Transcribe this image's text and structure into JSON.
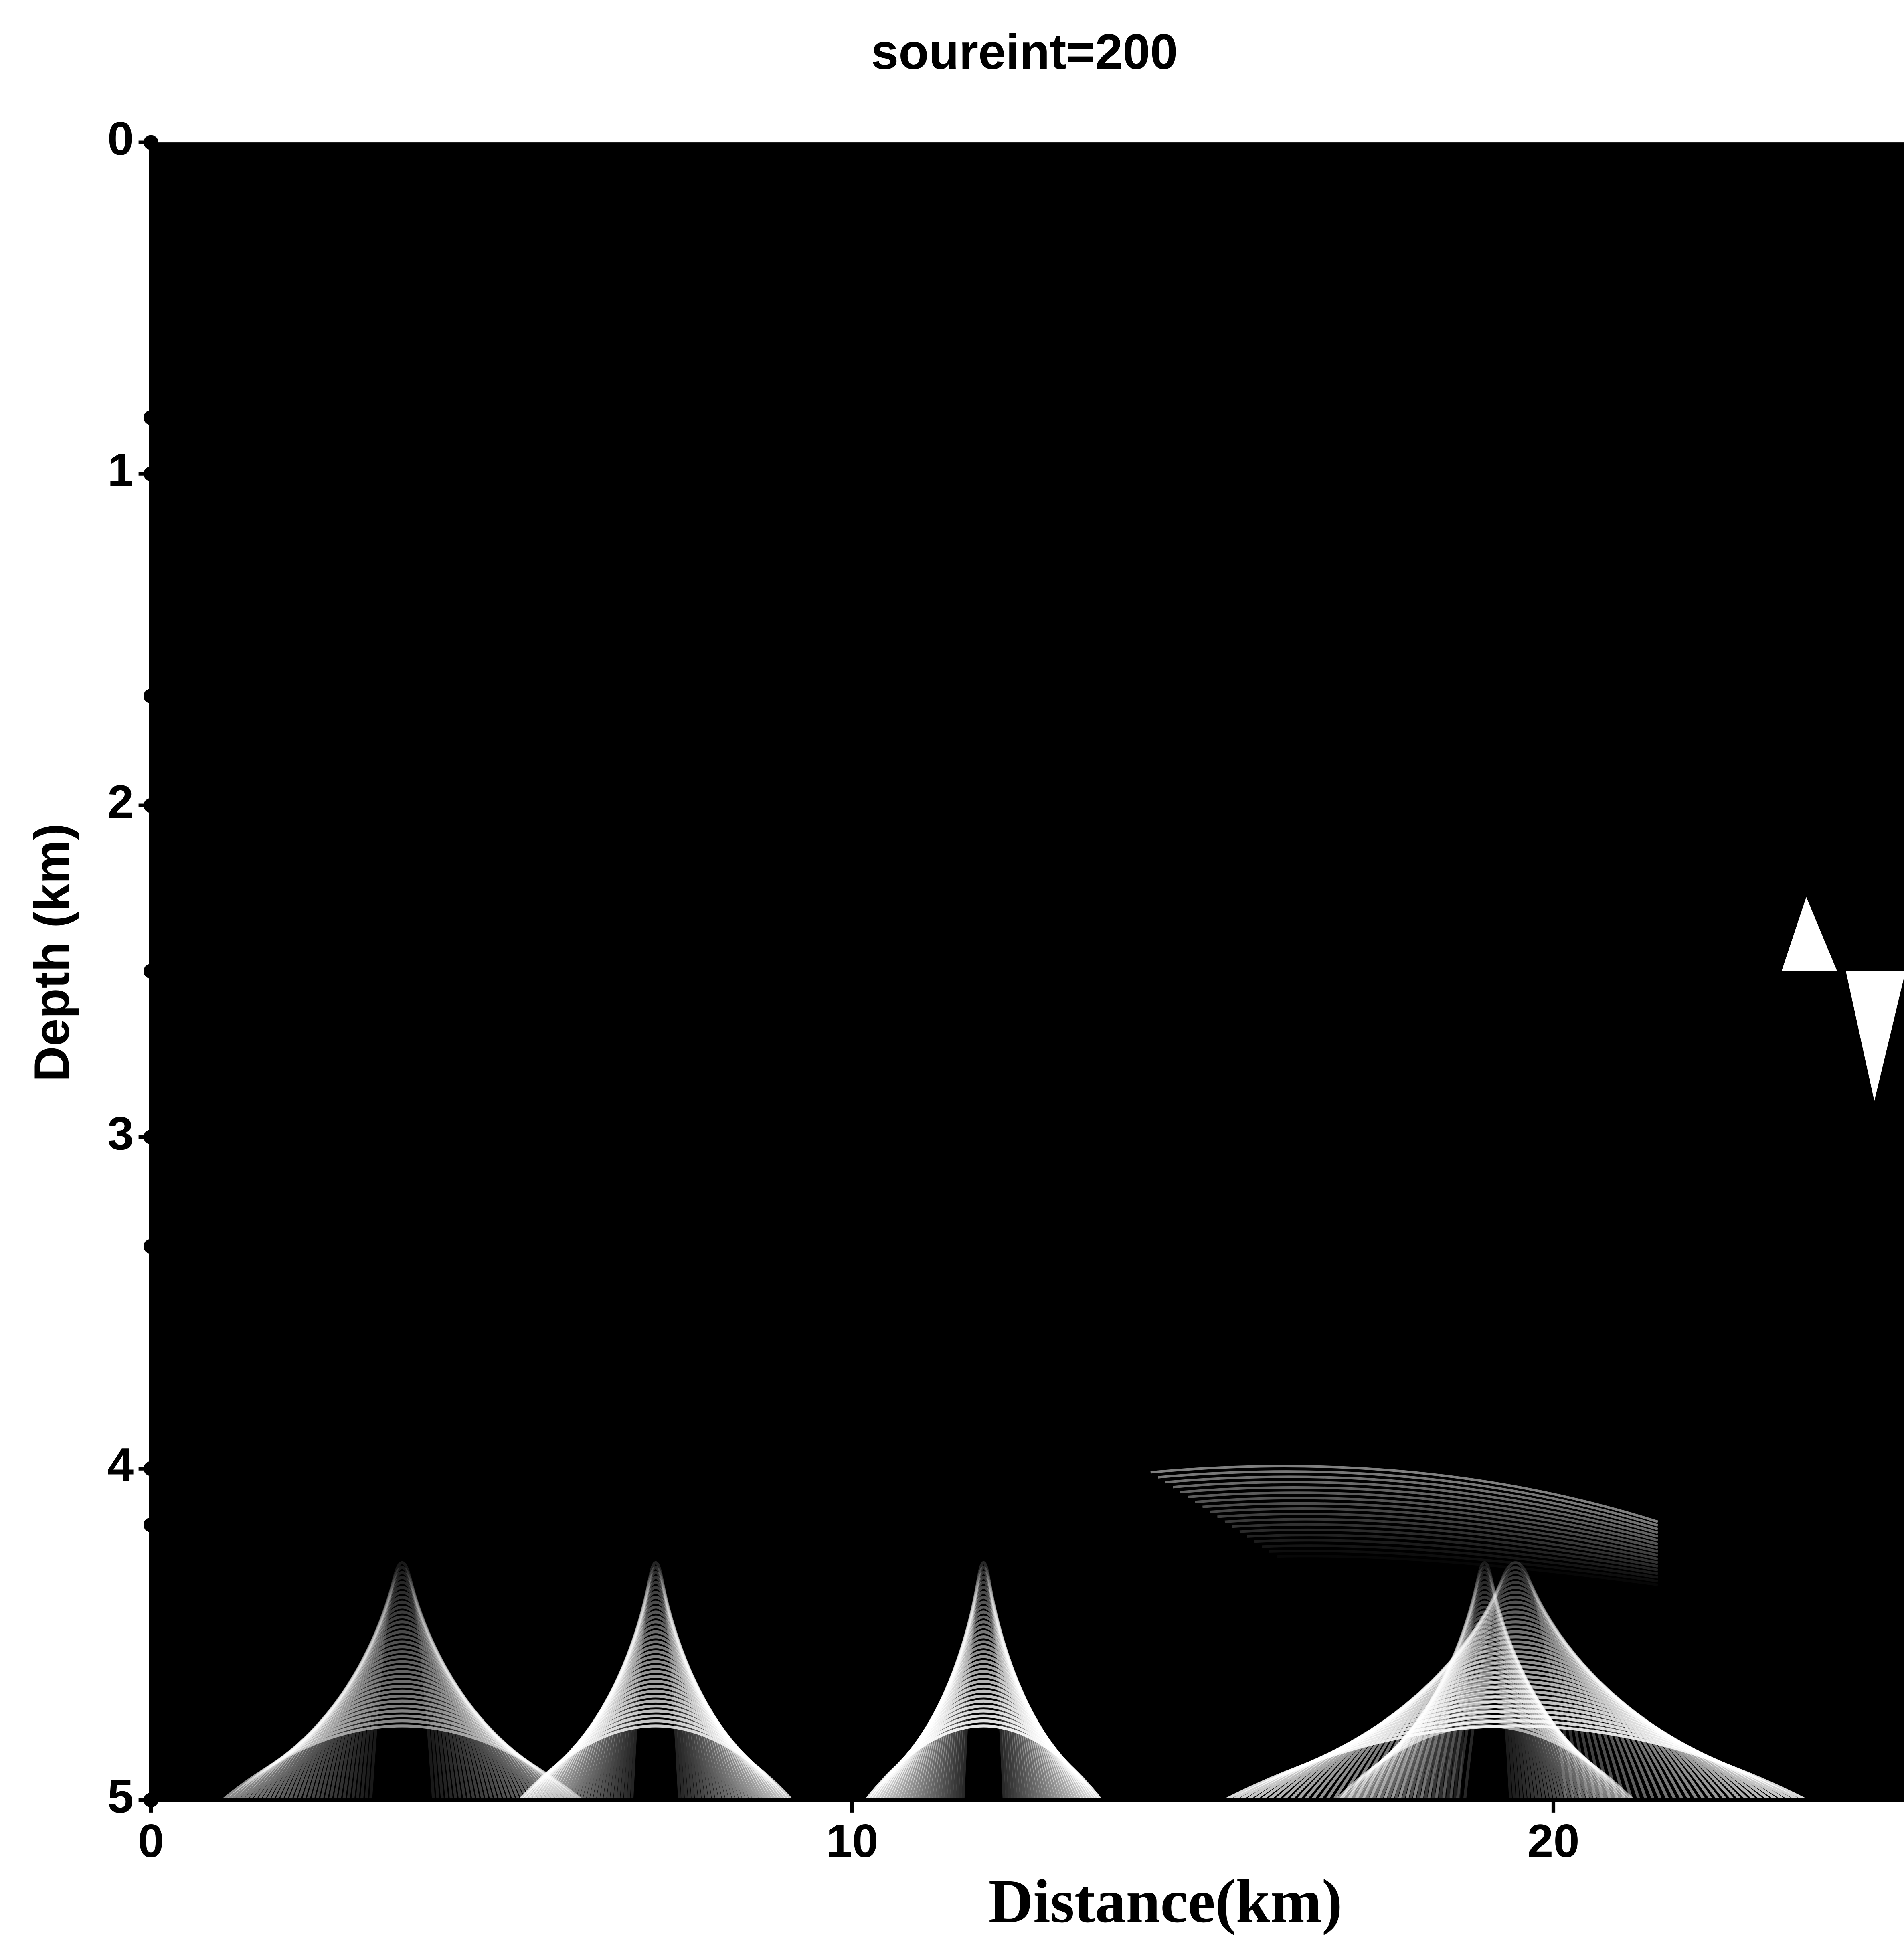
{
  "chart_data": {
    "type": "image",
    "title": "soureint=200",
    "x_label": "Distance(km)",
    "y_label": "Depth (km)",
    "xlim": [
      0,
      25
    ],
    "xticks": [
      0,
      10,
      20
    ],
    "ylim": [
      0,
      5
    ],
    "yticks": [
      0,
      1,
      2,
      3,
      4,
      5
    ],
    "y_inverted": true,
    "yminorticks": [
      0.83,
      1.67,
      2.5,
      3.33,
      4.17
    ]
  }
}
